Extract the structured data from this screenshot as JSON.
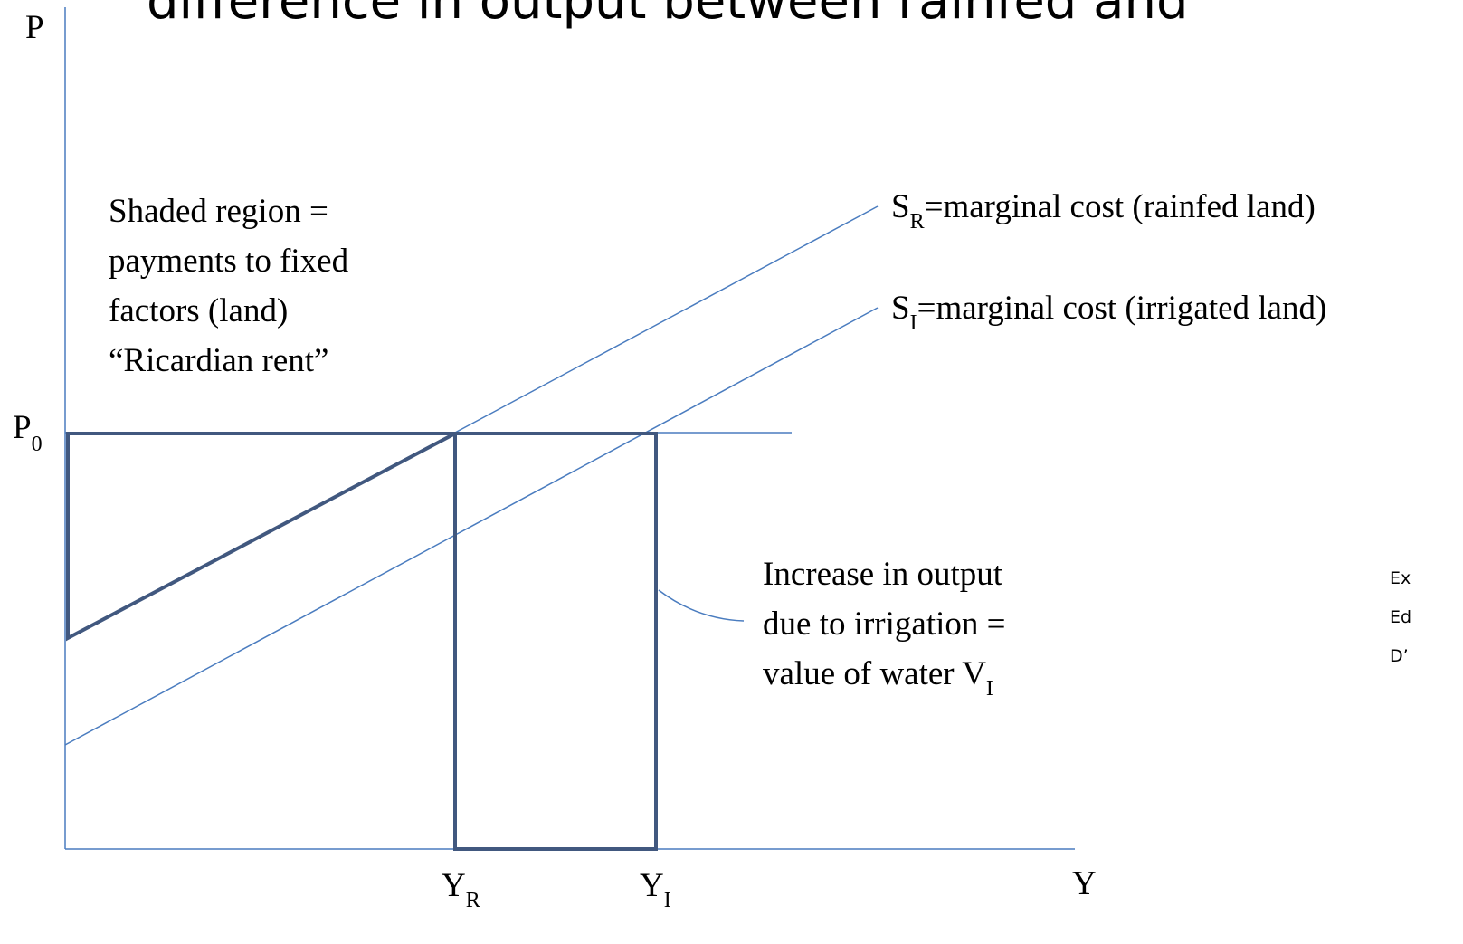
{
  "title": "difference in output between rainfed and",
  "axes": {
    "y": "P",
    "x": "Y"
  },
  "price": {
    "symbol": "P",
    "sub": "0"
  },
  "quantities": [
    {
      "symbol": "Y",
      "sub": "R"
    },
    {
      "symbol": "Y",
      "sub": "I"
    }
  ],
  "curves": [
    {
      "symbol": "S",
      "sub": "R",
      "text": "=marginal cost (rainfed land)"
    },
    {
      "symbol": "S",
      "sub": "I",
      "text": "=marginal cost (irrigated land)"
    }
  ],
  "shaded_note": [
    "Shaded region =",
    "payments to fixed",
    "factors (land)",
    "“Ricardian rent”"
  ],
  "increase_note": {
    "lines": [
      "Increase in output",
      "due to irrigation =",
      "value of water V"
    ],
    "sub": "I"
  },
  "side_note": [
    "Ex",
    "Ed",
    "D’"
  ]
}
